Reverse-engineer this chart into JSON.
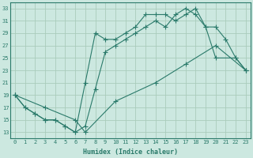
{
  "xlabel": "Humidex (Indice chaleur)",
  "bg_color": "#cce8e0",
  "grid_color": "#aaccbb",
  "line_color": "#2a7a6a",
  "xlim": [
    -0.5,
    23.5
  ],
  "ylim": [
    12,
    34
  ],
  "xticks": [
    0,
    1,
    2,
    3,
    4,
    5,
    6,
    7,
    8,
    9,
    10,
    11,
    12,
    13,
    14,
    15,
    16,
    17,
    18,
    19,
    20,
    21,
    22,
    23
  ],
  "yticks": [
    13,
    15,
    17,
    19,
    21,
    23,
    25,
    27,
    29,
    31,
    33
  ],
  "line1_x": [
    0,
    1,
    2,
    3,
    4,
    5,
    6,
    7,
    8,
    9,
    10,
    11,
    12,
    13,
    14,
    15,
    16,
    17,
    18,
    19,
    20,
    21,
    22,
    23
  ],
  "line1_y": [
    19,
    17,
    16,
    15,
    15,
    14,
    13,
    21,
    29,
    28,
    28,
    29,
    30,
    32,
    32,
    32,
    31,
    32,
    33,
    30,
    30,
    28,
    25,
    23
  ],
  "line2_x": [
    0,
    1,
    2,
    3,
    4,
    5,
    6,
    7,
    8,
    9,
    10,
    11,
    12,
    13,
    14,
    15,
    16,
    17,
    18,
    19,
    20,
    22,
    23
  ],
  "line2_y": [
    19,
    17,
    16,
    15,
    15,
    14,
    13,
    14,
    20,
    26,
    27,
    28,
    29,
    30,
    31,
    30,
    32,
    33,
    32,
    30,
    25,
    25,
    23
  ],
  "line3_x": [
    0,
    3,
    6,
    7,
    10,
    14,
    17,
    20,
    23
  ],
  "line3_y": [
    19,
    17,
    15,
    13,
    18,
    21,
    24,
    27,
    23
  ]
}
